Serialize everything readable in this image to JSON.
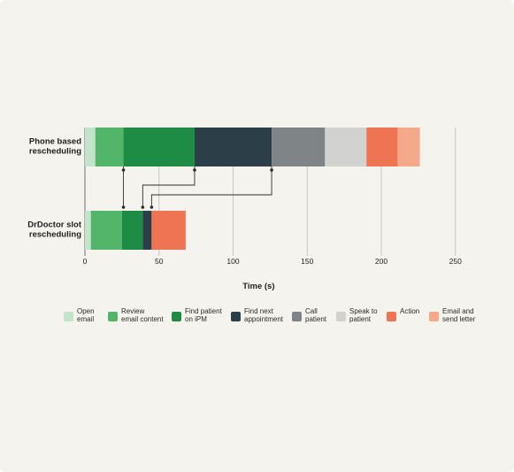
{
  "chart_data": {
    "type": "bar",
    "orientation": "horizontal",
    "stacked": true,
    "title": "",
    "xlabel": "Time (s)",
    "ylabel": "",
    "xlim": [
      0,
      250
    ],
    "xticks": [
      0,
      50,
      100,
      150,
      200,
      250
    ],
    "grid": true,
    "legend_position": "bottom",
    "rows": [
      {
        "label": "Phone based\nrescheduling",
        "segments": [
          {
            "step": "open_email",
            "value": 7
          },
          {
            "step": "review",
            "value": 19
          },
          {
            "step": "find_patient",
            "value": 48
          },
          {
            "step": "find_appt",
            "value": 52
          },
          {
            "step": "call",
            "value": 36
          },
          {
            "step": "speak",
            "value": 28
          },
          {
            "step": "action",
            "value": 21
          },
          {
            "step": "email_letter",
            "value": 15
          }
        ]
      },
      {
        "label": "DrDoctor slot\nrescheduling",
        "segments": [
          {
            "step": "open_email",
            "value": 4
          },
          {
            "step": "review",
            "value": 21
          },
          {
            "step": "find_patient",
            "value": 14
          },
          {
            "step": "find_appt",
            "value": 6
          },
          {
            "step": "action",
            "value": 23
          }
        ]
      }
    ],
    "connectors": [
      {
        "from": 26,
        "to": 26
      },
      {
        "from": 74,
        "to": 39
      },
      {
        "from": 126,
        "to": 45
      }
    ],
    "legend": [
      {
        "key": "open_email",
        "label": "Open\nemail",
        "color": "#c3e4cb"
      },
      {
        "key": "review",
        "label": "Review\nemail content",
        "color": "#52b56a"
      },
      {
        "key": "find_patient",
        "label": "Find patient\non iPM",
        "color": "#1f8c46"
      },
      {
        "key": "find_appt",
        "label": "Find next\nappointment",
        "color": "#2c3e47"
      },
      {
        "key": "call",
        "label": "Call\npatient",
        "color": "#7f8587"
      },
      {
        "key": "speak",
        "label": "Speak to\npatient",
        "color": "#d2d2d1"
      },
      {
        "key": "action",
        "label": "Action",
        "color": "#ef7453"
      },
      {
        "key": "email_letter",
        "label": "Email and\nsend letter",
        "color": "#f5a98b"
      }
    ]
  }
}
